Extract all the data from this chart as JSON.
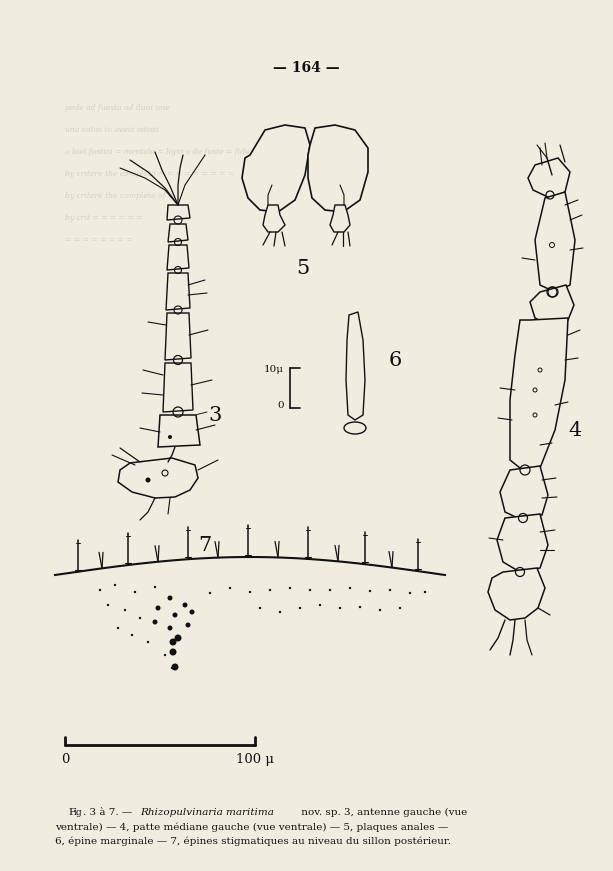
{
  "background_color": "#f0ede0",
  "page_number": "— 164 —",
  "caption_italic": "Rhizopulvinaria maritima",
  "caption_prefix": "Fig. 3 à 7. — ",
  "caption_rest1": " nov. sp. 3, antenne gauche (vue",
  "caption_line2": "ventrale) — 4, patte médiane gauche (vue ventrale) — 5, plaques anales —",
  "caption_line3": "6, épine marginale — 7, épines stigmatiques au niveau du sillon postérieur.",
  "label_3": "3",
  "label_4": "4",
  "label_5": "5",
  "label_6": "6",
  "label_7": "7",
  "scale_10mu": "10μ",
  "scale_0_small": "0",
  "scale_0_large": "0",
  "scale_100mu": "100 μ",
  "text_color": "#111111",
  "ghost_color": "#b8b4a0",
  "line_color": "#111111",
  "fig_width": 6.13,
  "fig_height": 8.71,
  "dpi": 100
}
